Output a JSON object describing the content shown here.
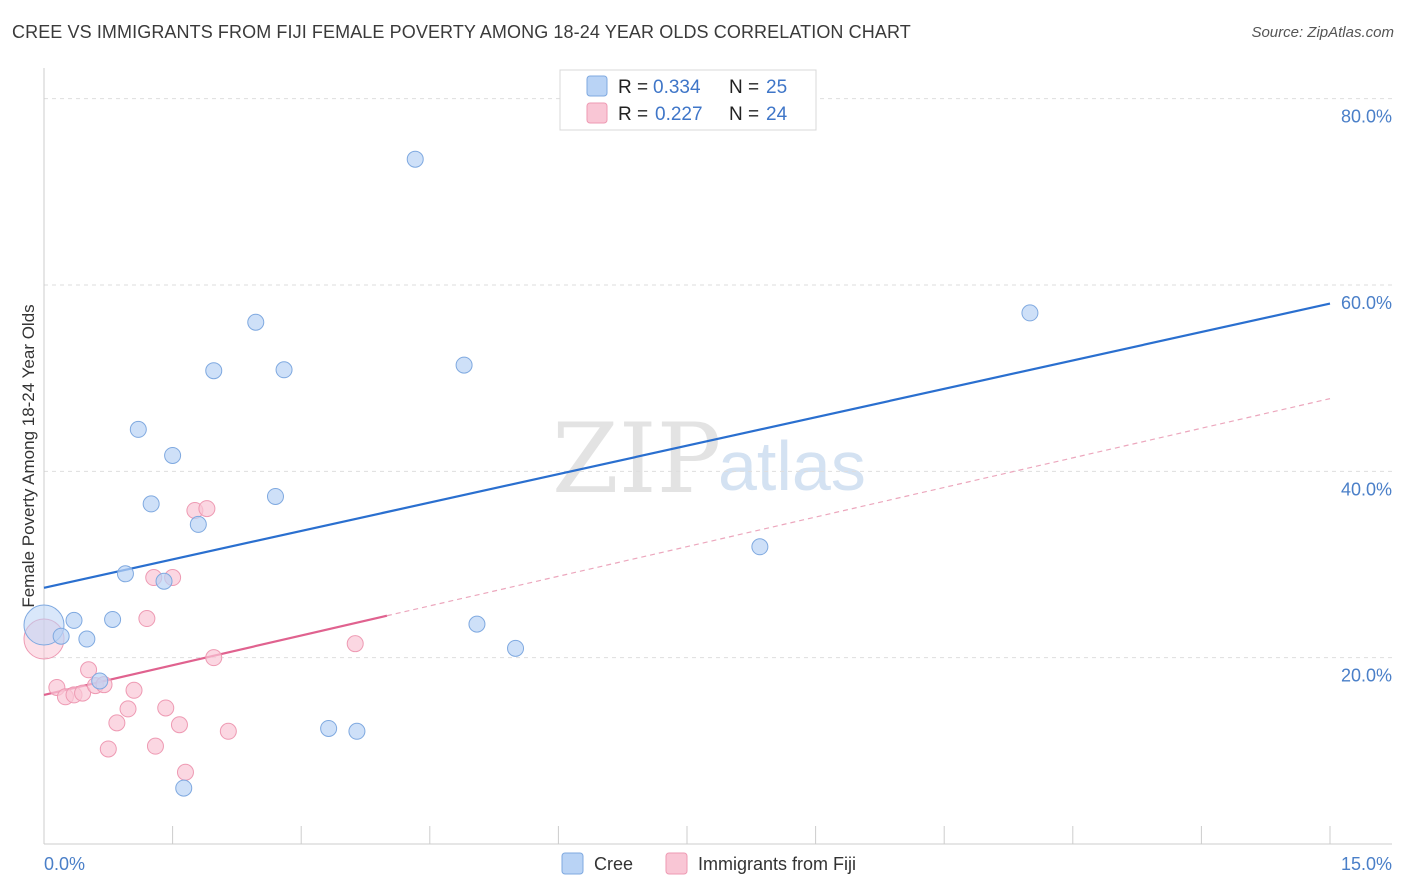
{
  "header": {
    "title": "CREE VS IMMIGRANTS FROM FIJI FEMALE POVERTY AMONG 18-24 YEAR OLDS CORRELATION CHART",
    "source": "Source: ZipAtlas.com"
  },
  "watermark": {
    "zip": "ZIP",
    "atlas": "atlas"
  },
  "colors": {
    "cree_fill": "#b9d3f5",
    "cree_stroke": "#7fa9e0",
    "cree_line": "#2a6fcf",
    "fiji_fill": "#f9c6d5",
    "fiji_stroke": "#ee9ab3",
    "fiji_line": "#e0628f",
    "grid": "#dedede",
    "axis_text": "#4a7fc8"
  },
  "legend": {
    "rows": [
      {
        "r_label": "R =",
        "r_value": "0.334",
        "n_label": "N =",
        "n_value": "25"
      },
      {
        "r_label": "R =",
        "r_value": "0.227",
        "n_label": "N =",
        "n_value": "24"
      }
    ]
  },
  "chart_data": {
    "type": "scatter",
    "title": "CREE VS IMMIGRANTS FROM FIJI FEMALE POVERTY AMONG 18-24 YEAR OLDS CORRELATION CHART",
    "xlabel": "",
    "ylabel": "Female Poverty Among 18-24 Year Olds",
    "xlim": [
      0,
      15
    ],
    "ylim": [
      0,
      82
    ],
    "x_tick_labels": [
      "0.0%",
      "15.0%"
    ],
    "y_ticks": [
      20,
      40,
      60,
      80
    ],
    "y_tick_labels": [
      "20.0%",
      "40.0%",
      "60.0%",
      "80.0%"
    ],
    "grid": true,
    "legend_position": "top-center",
    "series": [
      {
        "name": "Cree",
        "r": 0.334,
        "n": 25,
        "trend": {
          "x0": 0,
          "y0": 27.5,
          "x1": 15,
          "y1": 58.0
        },
        "points": [
          {
            "x": 0.0,
            "y": 23.5,
            "big": true
          },
          {
            "x": 0.2,
            "y": 22.3
          },
          {
            "x": 0.35,
            "y": 24.0
          },
          {
            "x": 0.5,
            "y": 22.0
          },
          {
            "x": 0.65,
            "y": 17.5
          },
          {
            "x": 0.8,
            "y": 24.1
          },
          {
            "x": 0.95,
            "y": 29.0
          },
          {
            "x": 1.1,
            "y": 44.5
          },
          {
            "x": 1.25,
            "y": 36.5
          },
          {
            "x": 1.4,
            "y": 28.2
          },
          {
            "x": 1.5,
            "y": 41.7
          },
          {
            "x": 1.63,
            "y": 6.0
          },
          {
            "x": 1.8,
            "y": 34.3
          },
          {
            "x": 1.98,
            "y": 50.8
          },
          {
            "x": 2.47,
            "y": 56.0
          },
          {
            "x": 2.7,
            "y": 37.3
          },
          {
            "x": 2.8,
            "y": 50.9
          },
          {
            "x": 3.32,
            "y": 12.4
          },
          {
            "x": 3.65,
            "y": 12.1
          },
          {
            "x": 4.33,
            "y": 73.5
          },
          {
            "x": 4.9,
            "y": 51.4
          },
          {
            "x": 5.05,
            "y": 23.6
          },
          {
            "x": 5.5,
            "y": 21.0
          },
          {
            "x": 8.35,
            "y": 31.9
          },
          {
            "x": 11.5,
            "y": 57.0
          }
        ]
      },
      {
        "name": "Immigrants from Fiji",
        "r": 0.227,
        "n": 24,
        "trend": {
          "x0": 0,
          "y0": 16.0,
          "x1": 4.0,
          "y1": 24.5,
          "dash_x1": 15,
          "dash_y1": 47.8
        },
        "points": [
          {
            "x": 0.0,
            "y": 22.0,
            "big": true
          },
          {
            "x": 0.15,
            "y": 16.8
          },
          {
            "x": 0.25,
            "y": 15.8
          },
          {
            "x": 0.35,
            "y": 16.0
          },
          {
            "x": 0.45,
            "y": 16.2
          },
          {
            "x": 0.52,
            "y": 18.7
          },
          {
            "x": 0.6,
            "y": 17.0
          },
          {
            "x": 0.7,
            "y": 17.1
          },
          {
            "x": 0.75,
            "y": 10.2
          },
          {
            "x": 0.85,
            "y": 13.0
          },
          {
            "x": 0.98,
            "y": 14.5
          },
          {
            "x": 1.05,
            "y": 16.5
          },
          {
            "x": 1.2,
            "y": 24.2
          },
          {
            "x": 1.28,
            "y": 28.6
          },
          {
            "x": 1.3,
            "y": 10.5
          },
          {
            "x": 1.42,
            "y": 14.6
          },
          {
            "x": 1.5,
            "y": 28.6
          },
          {
            "x": 1.58,
            "y": 12.8
          },
          {
            "x": 1.65,
            "y": 7.7
          },
          {
            "x": 1.76,
            "y": 35.8
          },
          {
            "x": 1.9,
            "y": 36.0
          },
          {
            "x": 1.98,
            "y": 20.0
          },
          {
            "x": 2.15,
            "y": 12.1
          },
          {
            "x": 3.63,
            "y": 21.5
          }
        ]
      }
    ]
  }
}
